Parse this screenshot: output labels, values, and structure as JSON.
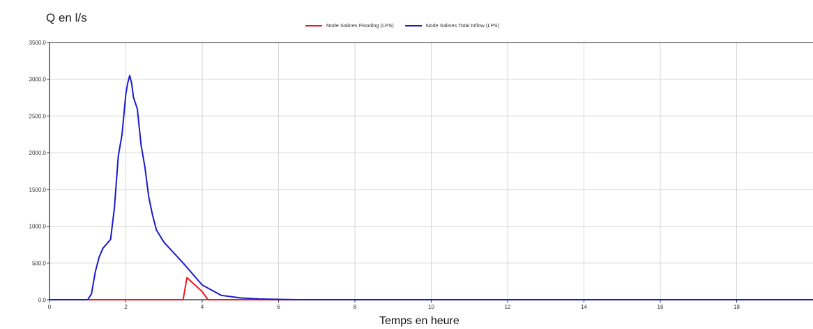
{
  "chart_data": {
    "type": "line",
    "title": "",
    "ylabel": "Q en l/s",
    "xlabel": "Temps en heure",
    "xlim": [
      0,
      20
    ],
    "ylim": [
      0,
      3500
    ],
    "x_ticks": [
      "0",
      "2",
      "4",
      "6",
      "8",
      "10",
      "12",
      "14",
      "16",
      "18"
    ],
    "y_ticks": [
      "0.0",
      "500.0",
      "1000.0",
      "1500.0",
      "2000.0",
      "2500.0",
      "3000.0",
      "3500.0"
    ],
    "grid": true,
    "legend_placement": "top",
    "series": [
      {
        "name": "Node Salines Flooding (LPS)",
        "color": "#e8191c",
        "x": [
          0,
          3.5,
          3.6,
          4.0,
          4.15,
          20
        ],
        "y": [
          0,
          0,
          300,
          110,
          0,
          0
        ]
      },
      {
        "name": "Node Salines Total Inflow (LPS)",
        "color": "#1a1acc",
        "x": [
          0,
          1.0,
          1.1,
          1.2,
          1.3,
          1.4,
          1.5,
          1.6,
          1.7,
          1.8,
          1.9,
          2.0,
          2.05,
          2.1,
          2.15,
          2.2,
          2.3,
          2.4,
          2.5,
          2.6,
          2.7,
          2.8,
          3.0,
          3.5,
          4.0,
          4.5,
          5.0,
          5.5,
          6.0,
          6.5,
          7.0,
          20
        ],
        "y": [
          0,
          0,
          80,
          380,
          580,
          700,
          760,
          820,
          1250,
          1950,
          2250,
          2800,
          2950,
          3050,
          2950,
          2750,
          2600,
          2100,
          1800,
          1400,
          1150,
          950,
          780,
          500,
          200,
          60,
          25,
          10,
          5,
          0,
          0,
          0
        ]
      }
    ]
  },
  "ui": {
    "ylabel": "Q en l/s",
    "xlabel": "Temps en heure",
    "legend": [
      "Node Salines Flooding (LPS)",
      "Node Salines Total Inflow (LPS)"
    ]
  }
}
